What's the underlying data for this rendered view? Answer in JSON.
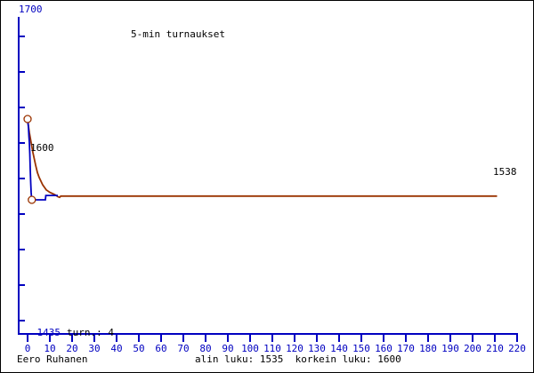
{
  "chart_data": {
    "type": "line",
    "title": "5-min turnaukset",
    "xlabel": "",
    "ylabel": "",
    "grid": false,
    "legend": null,
    "x_axis": {
      "min": 0,
      "max": 220,
      "ticks": [
        0,
        10,
        20,
        30,
        40,
        50,
        60,
        70,
        80,
        90,
        100,
        110,
        120,
        130,
        140,
        150,
        160,
        170,
        180,
        190,
        200,
        210,
        220
      ]
    },
    "y_axis": {
      "top_label": "1700",
      "bottom_label": "1435",
      "unlabeled_tick_count": 9
    },
    "annotations": {
      "start_rating_label": "1600",
      "final_rating_label": "1538",
      "tournament_count_label": "turn.: 4"
    },
    "values": {
      "start_rating": 1600,
      "current_rating": 1538,
      "min_rating": 1535,
      "max_rating": 1600,
      "tournaments": 4
    },
    "colors": {
      "axis": "#0000c0",
      "text": "#000000",
      "rating_line": "#0000c0",
      "trend_line": "#9a3300",
      "marker": "#9a3300",
      "background": "#ffffff"
    },
    "series": [
      {
        "name": "trend",
        "color": "#9a3300",
        "points": [
          [
            0,
            1600
          ],
          [
            0.4,
            1594
          ],
          [
            0.8,
            1589
          ],
          [
            1.2,
            1585
          ],
          [
            1.8,
            1579
          ],
          [
            2.4,
            1573
          ],
          [
            3.0,
            1568
          ],
          [
            3.6,
            1563
          ],
          [
            4.4,
            1557
          ],
          [
            5.2,
            1553
          ],
          [
            6.0,
            1550
          ],
          [
            6.8,
            1547
          ],
          [
            7.6,
            1545
          ],
          [
            8.4,
            1543
          ],
          [
            9.2,
            1542
          ],
          [
            10.0,
            1541
          ],
          [
            11.2,
            1540
          ],
          [
            12.4,
            1539
          ],
          [
            13.6,
            1537.5
          ],
          [
            14.4,
            1537
          ],
          [
            14.9,
            1538
          ],
          [
            211,
            1538
          ]
        ]
      },
      {
        "name": "rating",
        "color": "#0000c0",
        "points": [
          [
            0,
            1600
          ],
          [
            0.4,
            1593
          ],
          [
            0.6,
            1586
          ],
          [
            0.8,
            1581
          ],
          [
            1.0,
            1572
          ],
          [
            1.2,
            1559
          ],
          [
            1.4,
            1549
          ],
          [
            1.6,
            1541
          ],
          [
            1.8,
            1536
          ],
          [
            2.0,
            1535
          ],
          [
            8.0,
            1535
          ],
          [
            8.2,
            1538.5
          ],
          [
            13.6,
            1538.5
          ]
        ]
      }
    ],
    "markers": [
      {
        "x": 0,
        "y": 1600
      },
      {
        "x": 1.9,
        "y": 1535
      }
    ]
  },
  "footer": {
    "player": "Eero Ruhanen",
    "stats": "alin luku: 1535  korkein luku: 1600"
  }
}
